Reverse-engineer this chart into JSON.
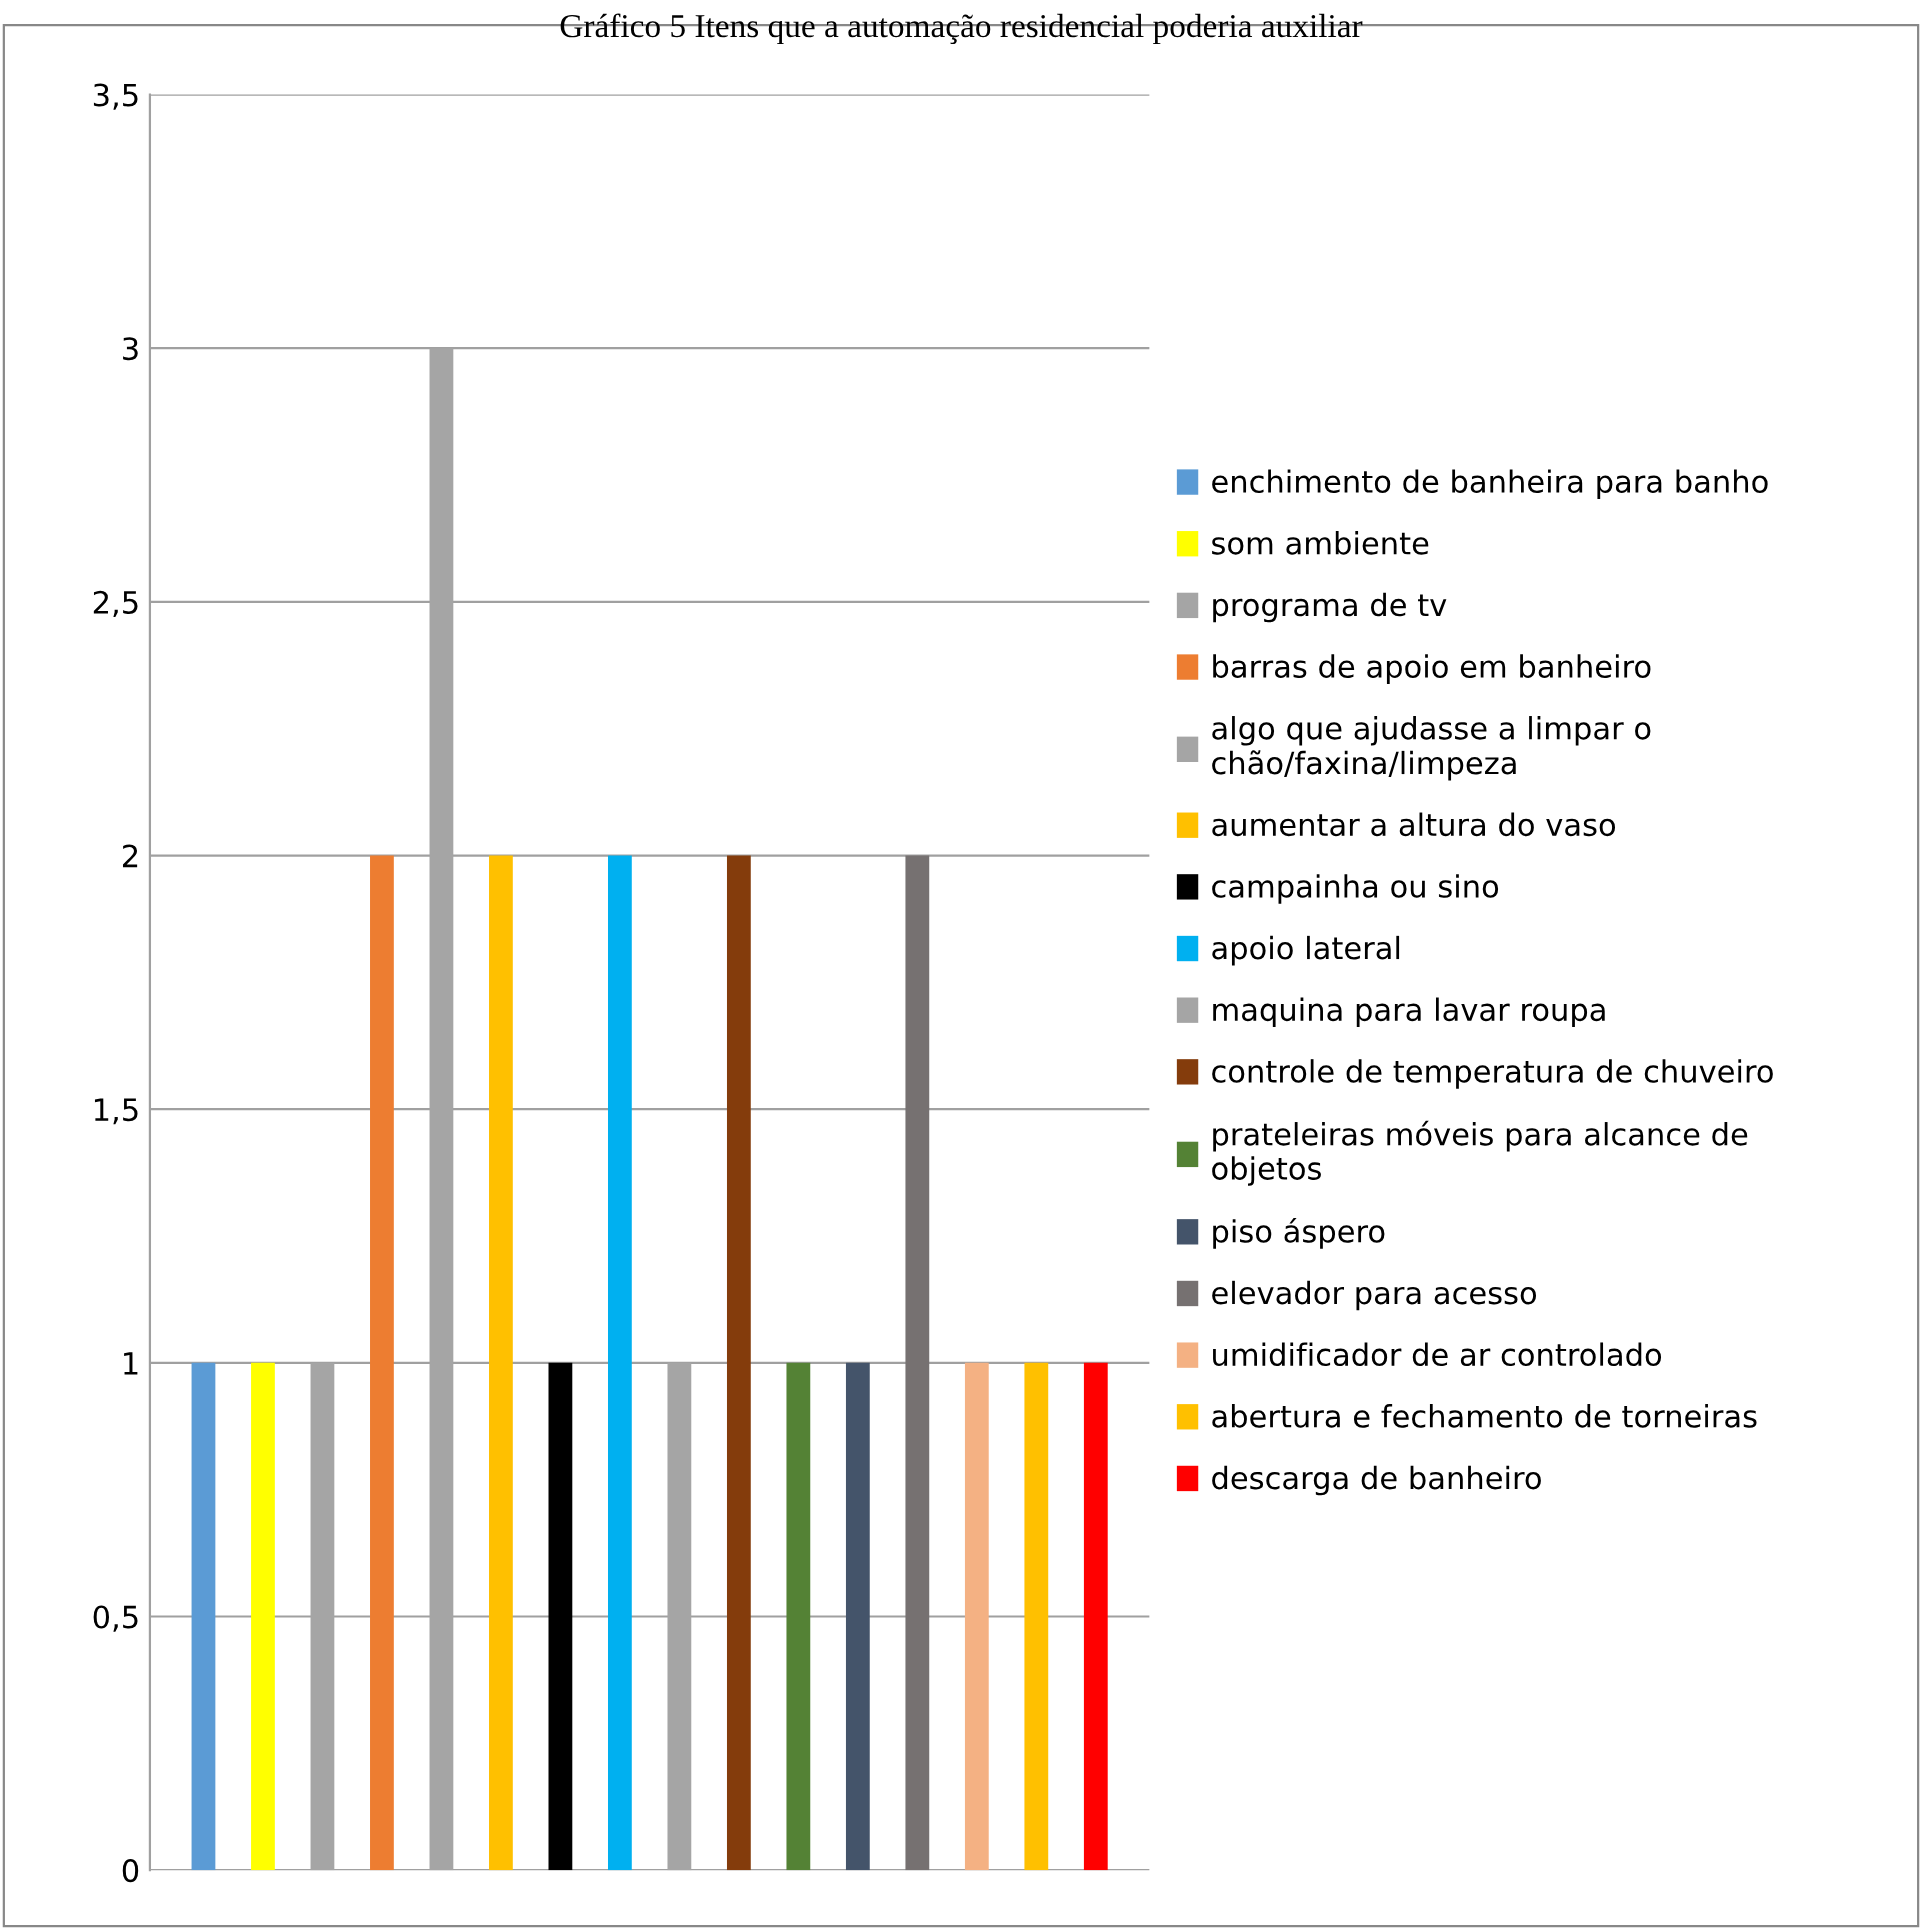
{
  "chart_data": {
    "type": "bar",
    "title": "Gráfico 5 Itens que a automação residencial poderia auxiliar",
    "categories": [
      null
    ],
    "ylim": [
      0,
      3.5
    ],
    "yticks": [
      0,
      {
        "value": 0.5,
        "label": "0,5"
      },
      1,
      {
        "value": 1.5,
        "label": "1,5"
      },
      2,
      {
        "value": 2.5,
        "label": "2,5"
      },
      3,
      {
        "value": 3.5,
        "label": "3,5"
      }
    ],
    "grid": "y",
    "legend": "right",
    "series": [
      {
        "name": "enchimento de banheira para banho",
        "color": "#5b9bd5",
        "values": [
          1
        ]
      },
      {
        "name": "som ambiente",
        "color": "#ffff00",
        "values": [
          1
        ]
      },
      {
        "name": "programa de tv",
        "color": "#a5a5a5",
        "values": [
          1
        ]
      },
      {
        "name": "barras de apoio em banheiro",
        "color": "#ed7d31",
        "values": [
          2
        ]
      },
      {
        "name": "algo que ajudasse a limpar o\nchão/faxina/limpeza",
        "color": "#a5a5a5",
        "values": [
          3
        ]
      },
      {
        "name": "aumentar a altura do vaso",
        "color": "#ffc000",
        "values": [
          2
        ]
      },
      {
        "name": "campainha ou sino",
        "color": "#000000",
        "values": [
          1
        ]
      },
      {
        "name": "apoio lateral",
        "color": "#00b0f0",
        "values": [
          2
        ]
      },
      {
        "name": "maquina para lavar roupa",
        "color": "#a5a5a5",
        "values": [
          1
        ]
      },
      {
        "name": "controle de temperatura de chuveiro",
        "color": "#843c0c",
        "values": [
          2
        ]
      },
      {
        "name": "prateleiras móveis para alcance de\nobjetos",
        "color": "#548235",
        "values": [
          1
        ]
      },
      {
        "name": "piso áspero",
        "color": "#44546a",
        "values": [
          1
        ]
      },
      {
        "name": "elevador para acesso",
        "color": "#767171",
        "values": [
          2
        ]
      },
      {
        "name": "umidificador de ar controlado",
        "color": "#f4b183",
        "values": [
          1
        ]
      },
      {
        "name": "abertura e fechamento de torneiras",
        "color": "#ffc000",
        "values": [
          1
        ]
      },
      {
        "name": "descarga de banheiro",
        "color": "#ff0000",
        "values": [
          1
        ]
      }
    ]
  }
}
